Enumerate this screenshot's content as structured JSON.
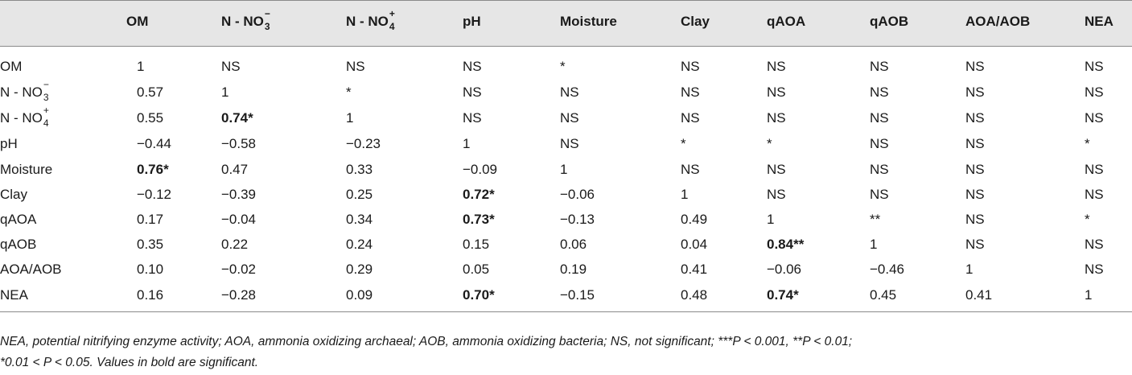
{
  "header": {
    "columns": [
      {
        "pre": "OM",
        "sub": "",
        "sup": ""
      },
      {
        "pre": "N - NO",
        "sub": "3",
        "sup": "−"
      },
      {
        "pre": "N - NO",
        "sub": "4",
        "sup": "+"
      },
      {
        "pre": "pH",
        "sub": "",
        "sup": ""
      },
      {
        "pre": "Moisture",
        "sub": "",
        "sup": ""
      },
      {
        "pre": "Clay",
        "sub": "",
        "sup": ""
      },
      {
        "pre": "qAOA",
        "sub": "",
        "sup": ""
      },
      {
        "pre": "qAOB",
        "sub": "",
        "sup": ""
      },
      {
        "pre": "AOA/AOB",
        "sub": "",
        "sup": ""
      },
      {
        "pre": "NEA",
        "sub": "",
        "sup": ""
      }
    ]
  },
  "rows": [
    {
      "label": {
        "pre": "OM",
        "sub": "",
        "sup": ""
      },
      "cells": [
        {
          "v": "1",
          "b": false
        },
        {
          "v": "NS",
          "b": false
        },
        {
          "v": "NS",
          "b": false
        },
        {
          "v": "NS",
          "b": false
        },
        {
          "v": "*",
          "b": false
        },
        {
          "v": "NS",
          "b": false
        },
        {
          "v": "NS",
          "b": false
        },
        {
          "v": "NS",
          "b": false
        },
        {
          "v": "NS",
          "b": false
        },
        {
          "v": "NS",
          "b": false
        }
      ]
    },
    {
      "label": {
        "pre": "N - NO",
        "sub": "3",
        "sup": "−"
      },
      "cells": [
        {
          "v": "0.57",
          "b": false
        },
        {
          "v": "1",
          "b": false
        },
        {
          "v": "*",
          "b": false
        },
        {
          "v": "NS",
          "b": false
        },
        {
          "v": "NS",
          "b": false
        },
        {
          "v": "NS",
          "b": false
        },
        {
          "v": "NS",
          "b": false
        },
        {
          "v": "NS",
          "b": false
        },
        {
          "v": "NS",
          "b": false
        },
        {
          "v": "NS",
          "b": false
        }
      ]
    },
    {
      "label": {
        "pre": "N - NO",
        "sub": "4",
        "sup": "+"
      },
      "cells": [
        {
          "v": "0.55",
          "b": false
        },
        {
          "v": "0.74*",
          "b": true
        },
        {
          "v": "1",
          "b": false
        },
        {
          "v": "NS",
          "b": false
        },
        {
          "v": "NS",
          "b": false
        },
        {
          "v": "NS",
          "b": false
        },
        {
          "v": "NS",
          "b": false
        },
        {
          "v": "NS",
          "b": false
        },
        {
          "v": "NS",
          "b": false
        },
        {
          "v": "NS",
          "b": false
        }
      ]
    },
    {
      "label": {
        "pre": "pH",
        "sub": "",
        "sup": ""
      },
      "cells": [
        {
          "v": "−0.44",
          "b": false
        },
        {
          "v": "−0.58",
          "b": false
        },
        {
          "v": "−0.23",
          "b": false
        },
        {
          "v": "1",
          "b": false
        },
        {
          "v": "NS",
          "b": false
        },
        {
          "v": "*",
          "b": false
        },
        {
          "v": "*",
          "b": false
        },
        {
          "v": "NS",
          "b": false
        },
        {
          "v": "NS",
          "b": false
        },
        {
          "v": "*",
          "b": false
        }
      ]
    },
    {
      "label": {
        "pre": "Moisture",
        "sub": "",
        "sup": ""
      },
      "cells": [
        {
          "v": "0.76*",
          "b": true
        },
        {
          "v": "0.47",
          "b": false
        },
        {
          "v": "0.33",
          "b": false
        },
        {
          "v": "−0.09",
          "b": false
        },
        {
          "v": "1",
          "b": false
        },
        {
          "v": "NS",
          "b": false
        },
        {
          "v": "NS",
          "b": false
        },
        {
          "v": "NS",
          "b": false
        },
        {
          "v": "NS",
          "b": false
        },
        {
          "v": "NS",
          "b": false
        }
      ]
    },
    {
      "label": {
        "pre": "Clay",
        "sub": "",
        "sup": ""
      },
      "cells": [
        {
          "v": "−0.12",
          "b": false
        },
        {
          "v": "−0.39",
          "b": false
        },
        {
          "v": "0.25",
          "b": false
        },
        {
          "v": "0.72*",
          "b": true
        },
        {
          "v": "−0.06",
          "b": false
        },
        {
          "v": "1",
          "b": false
        },
        {
          "v": "NS",
          "b": false
        },
        {
          "v": "NS",
          "b": false
        },
        {
          "v": "NS",
          "b": false
        },
        {
          "v": "NS",
          "b": false
        }
      ]
    },
    {
      "label": {
        "pre": "qAOA",
        "sub": "",
        "sup": ""
      },
      "cells": [
        {
          "v": "0.17",
          "b": false
        },
        {
          "v": "−0.04",
          "b": false
        },
        {
          "v": "0.34",
          "b": false
        },
        {
          "v": "0.73*",
          "b": true
        },
        {
          "v": "−0.13",
          "b": false
        },
        {
          "v": "0.49",
          "b": false
        },
        {
          "v": "1",
          "b": false
        },
        {
          "v": "**",
          "b": false
        },
        {
          "v": "NS",
          "b": false
        },
        {
          "v": "*",
          "b": false
        }
      ]
    },
    {
      "label": {
        "pre": "qAOB",
        "sub": "",
        "sup": ""
      },
      "cells": [
        {
          "v": "0.35",
          "b": false
        },
        {
          "v": "0.22",
          "b": false
        },
        {
          "v": "0.24",
          "b": false
        },
        {
          "v": "0.15",
          "b": false
        },
        {
          "v": "0.06",
          "b": false
        },
        {
          "v": "0.04",
          "b": false
        },
        {
          "v": "0.84**",
          "b": true
        },
        {
          "v": "1",
          "b": false
        },
        {
          "v": "NS",
          "b": false
        },
        {
          "v": "NS",
          "b": false
        }
      ]
    },
    {
      "label": {
        "pre": "AOA/AOB",
        "sub": "",
        "sup": ""
      },
      "cells": [
        {
          "v": "0.10",
          "b": false
        },
        {
          "v": "−0.02",
          "b": false
        },
        {
          "v": "0.29",
          "b": false
        },
        {
          "v": "0.05",
          "b": false
        },
        {
          "v": "0.19",
          "b": false
        },
        {
          "v": "0.41",
          "b": false
        },
        {
          "v": "−0.06",
          "b": false
        },
        {
          "v": "−0.46",
          "b": false
        },
        {
          "v": "1",
          "b": false
        },
        {
          "v": "NS",
          "b": false
        }
      ]
    },
    {
      "label": {
        "pre": "NEA",
        "sub": "",
        "sup": ""
      },
      "cells": [
        {
          "v": "0.16",
          "b": false
        },
        {
          "v": "−0.28",
          "b": false
        },
        {
          "v": "0.09",
          "b": false
        },
        {
          "v": "0.70*",
          "b": true
        },
        {
          "v": "−0.15",
          "b": false
        },
        {
          "v": "0.48",
          "b": false
        },
        {
          "v": "0.74*",
          "b": true
        },
        {
          "v": "0.45",
          "b": false
        },
        {
          "v": "0.41",
          "b": false
        },
        {
          "v": "1",
          "b": false
        }
      ]
    }
  ],
  "footnote": {
    "line1": "NEA, potential nitrifying enzyme activity; AOA, ammonia oxidizing archaeal; AOB, ammonia oxidizing bacteria; NS, not significant; ***P < 0.001, **P < 0.01;",
    "line2": "*0.01 < P < 0.05. Values in bold are significant."
  },
  "colors": {
    "header_bg": "#e6e6e6",
    "rule": "#8a8a8a",
    "text": "#1a1a1a"
  }
}
